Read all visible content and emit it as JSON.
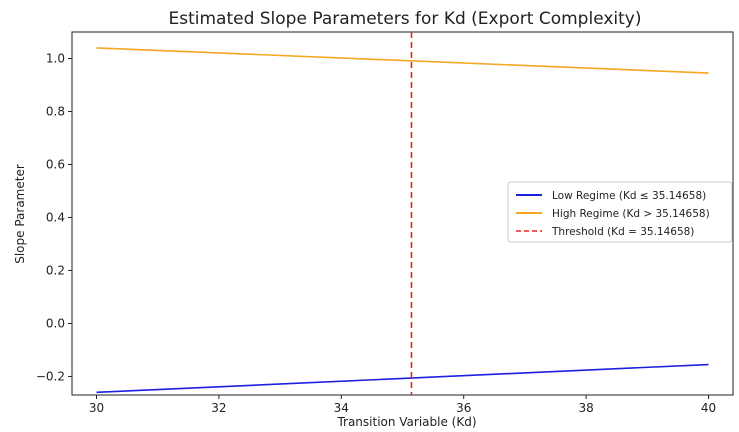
{
  "chart_data": {
    "type": "line",
    "title": "Estimated Slope Parameters for Kd (Export Complexity)",
    "xlabel": "Transition Variable (Kd)",
    "ylabel": "Slope Parameter",
    "xlim": [
      29.6,
      40.4
    ],
    "ylim": [
      -0.27,
      1.1
    ],
    "xticks": [
      30,
      32,
      34,
      36,
      38,
      40
    ],
    "yticks": [
      -0.2,
      0.0,
      0.2,
      0.4,
      0.6,
      0.8,
      1.0
    ],
    "xtick_labels": [
      "30",
      "32",
      "34",
      "36",
      "38",
      "40"
    ],
    "ytick_labels": [
      "−0.2",
      "0.0",
      "0.2",
      "0.4",
      "0.6",
      "0.8",
      "1.0"
    ],
    "grid": false,
    "legend_position": "center-right",
    "series": [
      {
        "name": "Low Regime (Kd ≤ 35.14658)",
        "color": "#1f1fe0",
        "style": "solid",
        "x": [
          30,
          40
        ],
        "y": [
          -0.26,
          -0.155
        ]
      },
      {
        "name": "High Regime (Kd > 35.14658)",
        "color": "#f5a623",
        "style": "solid",
        "x": [
          30,
          40
        ],
        "y": [
          1.04,
          0.945
        ]
      }
    ],
    "threshold": {
      "name": "Threshold (Kd = 35.14658)",
      "x": 35.14658,
      "color": "#e8231e",
      "style": "dashed"
    }
  }
}
